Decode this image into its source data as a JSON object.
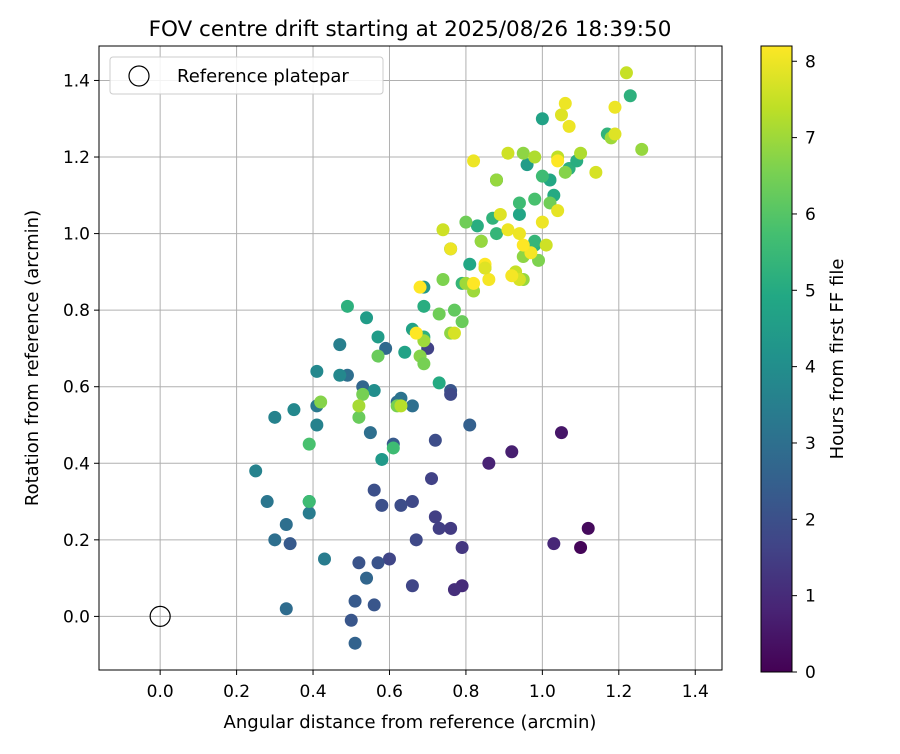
{
  "chart_data": {
    "type": "scatter",
    "title": "FOV centre drift starting at 2025/08/26 18:39:50",
    "xlabel": "Angular distance from reference (arcmin)",
    "ylabel": "Rotation from reference (arcmin)",
    "xlim": [
      -0.16,
      1.47
    ],
    "ylim": [
      -0.14,
      1.49
    ],
    "xticks": [
      "0.0",
      "0.2",
      "0.4",
      "0.6",
      "0.8",
      "1.0",
      "1.2",
      "1.4"
    ],
    "xtick_values": [
      0.0,
      0.2,
      0.4,
      0.6,
      0.8,
      1.0,
      1.2,
      1.4
    ],
    "yticks": [
      "0.0",
      "0.2",
      "0.4",
      "0.6",
      "0.8",
      "1.0",
      "1.2",
      "1.4"
    ],
    "ytick_values": [
      0.0,
      0.2,
      0.4,
      0.6,
      0.8,
      1.0,
      1.2,
      1.4
    ],
    "grid": true,
    "legend": {
      "placement": "top-left",
      "entries": [
        "Reference platepar"
      ]
    },
    "reference_point": {
      "x": 0.0,
      "y": 0.0,
      "label": "Reference platepar"
    },
    "colorbar": {
      "label": "Hours from first FF file",
      "colormap": "viridis",
      "range": [
        0,
        8.2
      ],
      "ticks": [
        "0",
        "1",
        "2",
        "3",
        "4",
        "5",
        "6",
        "7",
        "8"
      ],
      "tick_values": [
        0,
        1,
        2,
        3,
        4,
        5,
        6,
        7,
        8
      ],
      "colors": [
        "#440154",
        "#482475",
        "#414487",
        "#355f8d",
        "#2a788e",
        "#21918c",
        "#22a884",
        "#44bf70",
        "#7ad151",
        "#bddf26",
        "#fde725"
      ]
    },
    "points": [
      [
        1.1,
        0.18,
        0.1
      ],
      [
        1.12,
        0.23,
        0.2
      ],
      [
        1.05,
        0.48,
        0.5
      ],
      [
        0.92,
        0.43,
        0.7
      ],
      [
        0.86,
        0.4,
        0.8
      ],
      [
        1.03,
        0.19,
        0.9
      ],
      [
        0.79,
        0.08,
        1.0
      ],
      [
        0.77,
        0.07,
        1.1
      ],
      [
        0.79,
        0.18,
        1.3
      ],
      [
        0.76,
        0.23,
        1.4
      ],
      [
        0.72,
        0.26,
        1.5
      ],
      [
        0.73,
        0.23,
        1.5
      ],
      [
        0.71,
        0.36,
        1.6
      ],
      [
        0.72,
        0.46,
        1.9
      ],
      [
        0.66,
        0.08,
        1.7
      ],
      [
        0.67,
        0.2,
        1.8
      ],
      [
        0.66,
        0.3,
        1.8
      ],
      [
        0.63,
        0.29,
        1.9
      ],
      [
        0.6,
        0.15,
        1.7
      ],
      [
        0.58,
        0.29,
        2.0
      ],
      [
        0.56,
        0.33,
        2.0
      ],
      [
        0.57,
        0.14,
        2.1
      ],
      [
        0.52,
        0.14,
        2.1
      ],
      [
        0.5,
        -0.01,
        2.2
      ],
      [
        0.51,
        0.04,
        2.3
      ],
      [
        0.51,
        -0.07,
        2.6
      ],
      [
        0.56,
        0.03,
        2.2
      ],
      [
        0.54,
        0.1,
        2.7
      ],
      [
        0.33,
        0.02,
        2.9
      ],
      [
        0.34,
        0.19,
        2.3
      ],
      [
        0.3,
        0.2,
        3.0
      ],
      [
        0.33,
        0.24,
        3.0
      ],
      [
        0.28,
        0.3,
        3.2
      ],
      [
        0.39,
        0.3,
        3.2
      ],
      [
        0.39,
        0.27,
        3.4
      ],
      [
        0.43,
        0.15,
        3.4
      ],
      [
        0.25,
        0.38,
        3.6
      ],
      [
        0.3,
        0.52,
        3.6
      ],
      [
        0.35,
        0.54,
        3.8
      ],
      [
        0.41,
        0.5,
        3.6
      ],
      [
        0.41,
        0.55,
        3.3
      ],
      [
        0.41,
        0.64,
        3.8
      ],
      [
        0.47,
        0.71,
        3.5
      ],
      [
        0.49,
        0.63,
        3.0
      ],
      [
        0.47,
        0.63,
        3.8
      ],
      [
        0.53,
        0.6,
        2.7
      ],
      [
        0.55,
        0.48,
        3.0
      ],
      [
        0.56,
        0.59,
        4.0
      ],
      [
        0.58,
        0.41,
        4.4
      ],
      [
        0.59,
        0.7,
        2.8
      ],
      [
        0.61,
        0.45,
        2.3
      ],
      [
        0.62,
        0.56,
        2.9
      ],
      [
        0.63,
        0.57,
        3.1
      ],
      [
        0.66,
        0.55,
        3.0
      ],
      [
        0.76,
        0.59,
        2.2
      ],
      [
        0.76,
        0.58,
        1.8
      ],
      [
        0.81,
        0.5,
        2.5
      ],
      [
        0.7,
        0.7,
        1.6
      ],
      [
        0.57,
        0.73,
        4.5
      ],
      [
        0.54,
        0.78,
        4.5
      ],
      [
        0.49,
        0.81,
        5.2
      ],
      [
        0.64,
        0.69,
        4.7
      ],
      [
        0.66,
        0.75,
        4.7
      ],
      [
        0.69,
        0.86,
        4.3
      ],
      [
        0.69,
        0.81,
        5.1
      ],
      [
        0.73,
        0.61,
        5.0
      ],
      [
        0.69,
        0.73,
        5.2
      ],
      [
        0.76,
        0.96,
        4.4
      ],
      [
        0.79,
        0.87,
        5.4
      ],
      [
        0.81,
        0.92,
        4.9
      ],
      [
        0.83,
        1.02,
        5.1
      ],
      [
        0.84,
        0.98,
        5.6
      ],
      [
        0.87,
        1.04,
        5.3
      ],
      [
        0.88,
        1.0,
        5.4
      ],
      [
        0.88,
        1.14,
        4.4
      ],
      [
        0.94,
        1.05,
        4.8
      ],
      [
        0.94,
        1.08,
        5.6
      ],
      [
        0.96,
        1.18,
        4.5
      ],
      [
        1.0,
        1.3,
        4.7
      ],
      [
        1.02,
        1.14,
        4.9
      ],
      [
        1.03,
        1.1,
        5.0
      ],
      [
        1.07,
        1.17,
        5.2
      ],
      [
        1.09,
        1.19,
        5.1
      ],
      [
        1.23,
        1.36,
        5.2
      ],
      [
        1.17,
        1.26,
        5.3
      ],
      [
        0.98,
        0.97,
        5.2
      ],
      [
        0.98,
        0.98,
        5.4
      ],
      [
        0.98,
        1.09,
        5.8
      ],
      [
        1.0,
        1.15,
        5.6
      ],
      [
        1.02,
        1.08,
        6.4
      ],
      [
        0.99,
        0.93,
        6.6
      ],
      [
        0.95,
        0.94,
        6.8
      ],
      [
        0.95,
        0.88,
        6.9
      ],
      [
        0.93,
        0.9,
        7.5
      ],
      [
        0.85,
        0.91,
        6.6
      ],
      [
        0.84,
        0.98,
        6.9
      ],
      [
        0.8,
        1.03,
        6.4
      ],
      [
        0.79,
        0.77,
        6.3
      ],
      [
        0.77,
        0.8,
        6.2
      ],
      [
        0.76,
        0.74,
        6.8
      ],
      [
        0.73,
        0.79,
        6.4
      ],
      [
        0.74,
        0.88,
        6.6
      ],
      [
        0.69,
        0.72,
        7.0
      ],
      [
        0.68,
        0.68,
        6.7
      ],
      [
        0.69,
        0.66,
        6.5
      ],
      [
        0.57,
        0.68,
        6.3
      ],
      [
        0.62,
        0.55,
        6.5
      ],
      [
        0.61,
        0.44,
        5.6
      ],
      [
        0.53,
        0.58,
        6.5
      ],
      [
        0.52,
        0.52,
        6.3
      ],
      [
        0.52,
        0.55,
        7.1
      ],
      [
        0.39,
        0.45,
        5.8
      ],
      [
        0.39,
        0.3,
        5.6
      ],
      [
        0.42,
        0.56,
        6.7
      ],
      [
        0.82,
        0.85,
        7.0
      ],
      [
        0.8,
        0.87,
        7.0
      ],
      [
        0.74,
        1.01,
        7.6
      ],
      [
        0.88,
        1.14,
        6.9
      ],
      [
        0.91,
        1.21,
        7.6
      ],
      [
        0.95,
        1.21,
        6.8
      ],
      [
        0.98,
        1.2,
        7.2
      ],
      [
        1.04,
        1.2,
        7.4
      ],
      [
        1.06,
        1.16,
        6.7
      ],
      [
        1.1,
        1.21,
        7.2
      ],
      [
        1.26,
        1.22,
        6.9
      ],
      [
        1.22,
        1.42,
        7.5
      ],
      [
        1.14,
        1.16,
        7.7
      ],
      [
        1.18,
        1.25,
        7.0
      ],
      [
        1.19,
        1.26,
        7.8
      ],
      [
        1.19,
        1.33,
        8.0
      ],
      [
        1.05,
        1.31,
        7.8
      ],
      [
        1.06,
        1.34,
        8.0
      ],
      [
        1.07,
        1.28,
        8.0
      ],
      [
        1.04,
        1.19,
        8.2
      ],
      [
        1.04,
        1.06,
        7.9
      ],
      [
        1.0,
        1.03,
        8.0
      ],
      [
        1.01,
        0.97,
        7.6
      ],
      [
        0.97,
        0.95,
        8.1
      ],
      [
        0.95,
        0.97,
        8.2
      ],
      [
        0.94,
        1.0,
        8.0
      ],
      [
        0.94,
        0.88,
        7.7
      ],
      [
        0.91,
        1.01,
        8.0
      ],
      [
        0.92,
        0.89,
        8.1
      ],
      [
        0.89,
        1.05,
        7.8
      ],
      [
        0.86,
        0.88,
        8.1
      ],
      [
        0.85,
        0.92,
        8.2
      ],
      [
        0.85,
        0.91,
        7.8
      ],
      [
        0.82,
        0.87,
        8.2
      ],
      [
        0.82,
        1.19,
        8.0
      ],
      [
        0.76,
        0.96,
        8.0
      ],
      [
        0.68,
        0.86,
        8.2
      ],
      [
        0.67,
        0.74,
        8.2
      ],
      [
        0.77,
        0.74,
        7.7
      ],
      [
        0.63,
        0.55,
        7.3
      ]
    ]
  }
}
